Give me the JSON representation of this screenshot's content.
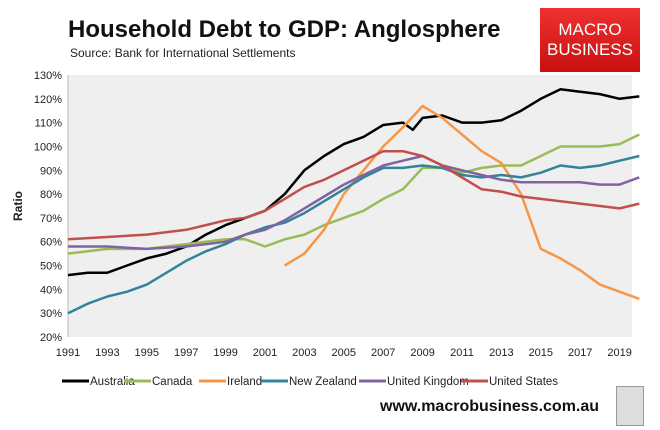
{
  "logo": {
    "line1": "MACRO",
    "line2": "BUSINESS"
  },
  "url": "www.macrobusiness.com.au",
  "chart_data": {
    "type": "line",
    "title": "Household Debt to GDP: Anglosphere",
    "subtitle": "Source: Bank for International Settlements",
    "ylabel": "Ratio",
    "xlabel": "",
    "ylim": [
      20,
      130
    ],
    "xlim": [
      1991,
      2020
    ],
    "y_ticks": [
      "20%",
      "30%",
      "40%",
      "50%",
      "60%",
      "70%",
      "80%",
      "90%",
      "100%",
      "110%",
      "120%",
      "130%"
    ],
    "x_ticks": [
      "1991",
      "1993",
      "1995",
      "1997",
      "1999",
      "2001",
      "2003",
      "2005",
      "2007",
      "2009",
      "2011",
      "2013",
      "2015",
      "2017",
      "2019"
    ],
    "grid": false,
    "legend": "bottom",
    "series": [
      {
        "name": "Australia",
        "color": "#000000",
        "x": [
          1991,
          1992,
          1993,
          1994,
          1995,
          1996,
          1997,
          1998,
          1999,
          2000,
          2001,
          2002,
          2003,
          2004,
          2005,
          2006,
          2007,
          2008,
          2008.5,
          2009,
          2010,
          2011,
          2012,
          2013,
          2014,
          2015,
          2016,
          2017,
          2018,
          2019,
          2020
        ],
        "values": [
          46,
          47,
          47,
          50,
          53,
          55,
          58,
          63,
          67,
          70,
          73,
          80,
          90,
          96,
          101,
          104,
          109,
          110,
          107,
          112,
          113,
          110,
          110,
          111,
          115,
          120,
          124,
          123,
          122,
          120,
          121
        ]
      },
      {
        "name": "Canada",
        "color": "#9bbb59",
        "x": [
          1991,
          1993,
          1995,
          1997,
          1999,
          2000,
          2001,
          2002,
          2003,
          2004,
          2005,
          2006,
          2007,
          2008,
          2009,
          2010,
          2011,
          2012,
          2013,
          2014,
          2015,
          2016,
          2017,
          2018,
          2019,
          2020
        ],
        "values": [
          55,
          57,
          57,
          59,
          61,
          61,
          58,
          61,
          63,
          67,
          70,
          73,
          78,
          82,
          91,
          91,
          89,
          91,
          92,
          92,
          96,
          100,
          100,
          100,
          101,
          105
        ]
      },
      {
        "name": "Ireland",
        "color": "#f79646",
        "x": [
          2002,
          2003,
          2004,
          2005,
          2006,
          2007,
          2008,
          2009,
          2010,
          2011,
          2012,
          2013,
          2014,
          2015,
          2016,
          2017,
          2018,
          2019,
          2020
        ],
        "values": [
          50,
          55,
          65,
          80,
          90,
          100,
          108,
          117,
          112,
          105,
          98,
          93,
          80,
          57,
          53,
          48,
          42,
          39,
          36
        ]
      },
      {
        "name": "New Zealand",
        "color": "#31849b",
        "x": [
          1991,
          1992,
          1993,
          1994,
          1995,
          1996,
          1997,
          1998,
          1999,
          2000,
          2001,
          2002,
          2003,
          2004,
          2005,
          2006,
          2007,
          2008,
          2009,
          2010,
          2011,
          2012,
          2013,
          2014,
          2015,
          2016,
          2017,
          2018,
          2019,
          2020
        ],
        "values": [
          30,
          34,
          37,
          39,
          42,
          47,
          52,
          56,
          59,
          63,
          66,
          68,
          72,
          77,
          82,
          87,
          91,
          91,
          92,
          91,
          88,
          87,
          88,
          87,
          89,
          92,
          91,
          92,
          94,
          96
        ]
      },
      {
        "name": "United Kingdom",
        "color": "#8064a2",
        "x": [
          1991,
          1993,
          1995,
          1997,
          1999,
          2000,
          2001,
          2002,
          2003,
          2004,
          2005,
          2006,
          2007,
          2008,
          2009,
          2010,
          2011,
          2012,
          2013,
          2014,
          2015,
          2016,
          2017,
          2018,
          2019,
          2020
        ],
        "values": [
          58,
          58,
          57,
          58,
          60,
          63,
          65,
          69,
          74,
          79,
          84,
          88,
          92,
          94,
          96,
          92,
          90,
          88,
          86,
          85,
          85,
          85,
          85,
          84,
          84,
          87
        ]
      },
      {
        "name": "United States",
        "color": "#c0504d",
        "x": [
          1991,
          1993,
          1995,
          1997,
          1998,
          1999,
          2000,
          2001,
          2002,
          2003,
          2004,
          2005,
          2006,
          2007,
          2008,
          2009,
          2010,
          2011,
          2012,
          2013,
          2014,
          2015,
          2016,
          2017,
          2018,
          2019,
          2020
        ],
        "values": [
          61,
          62,
          63,
          65,
          67,
          69,
          70,
          73,
          78,
          83,
          86,
          90,
          94,
          98,
          98,
          96,
          92,
          87,
          82,
          81,
          79,
          78,
          77,
          76,
          75,
          74,
          76
        ]
      }
    ]
  }
}
